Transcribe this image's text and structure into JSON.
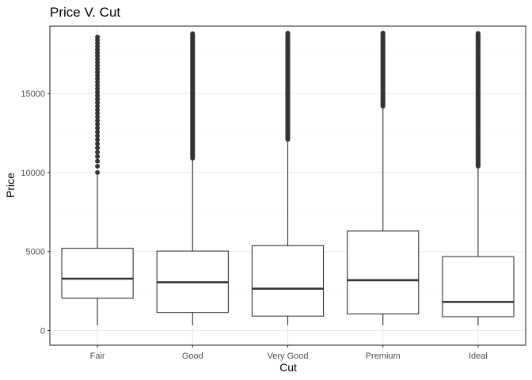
{
  "chart_data": {
    "type": "box",
    "title": "Price V. Cut",
    "xlabel": "Cut",
    "ylabel": "Price",
    "categories": [
      "Fair",
      "Good",
      "Very Good",
      "Premium",
      "Ideal"
    ],
    "ylim": [
      -927,
      19264
    ],
    "yticks": [
      0,
      5000,
      10000,
      15000
    ],
    "grid": true,
    "theme": "bw",
    "colors": {
      "box": "#333333",
      "grid_major": "#ebebeb",
      "grid_minor": "#f5f5f5",
      "panel_border": "#333333",
      "outlier": "#333333"
    },
    "boxes": [
      {
        "category": "Fair",
        "whisker_low": 337,
        "q1": 2050,
        "median": 3282,
        "q3": 5206,
        "whisker_high": 9900,
        "outliers_from": 10000,
        "outliers_to": 18574,
        "outlier_style": "sparse"
      },
      {
        "category": "Good",
        "whisker_low": 327,
        "q1": 1145,
        "median": 3051,
        "q3": 5028,
        "whisker_high": 10800,
        "outliers_from": 10900,
        "outliers_to": 18788,
        "outlier_style": "dense"
      },
      {
        "category": "Very Good",
        "whisker_low": 336,
        "q1": 912,
        "median": 2648,
        "q3": 5373,
        "whisker_high": 12000,
        "outliers_from": 12100,
        "outliers_to": 18818,
        "outlier_style": "dense"
      },
      {
        "category": "Premium",
        "whisker_low": 326,
        "q1": 1046,
        "median": 3185,
        "q3": 6296,
        "whisker_high": 14100,
        "outliers_from": 14200,
        "outliers_to": 18823,
        "outlier_style": "dense"
      },
      {
        "category": "Ideal",
        "whisker_low": 326,
        "q1": 878,
        "median": 1810,
        "q3": 4678,
        "whisker_high": 10300,
        "outliers_from": 10400,
        "outliers_to": 18806,
        "outlier_style": "dense"
      }
    ]
  }
}
